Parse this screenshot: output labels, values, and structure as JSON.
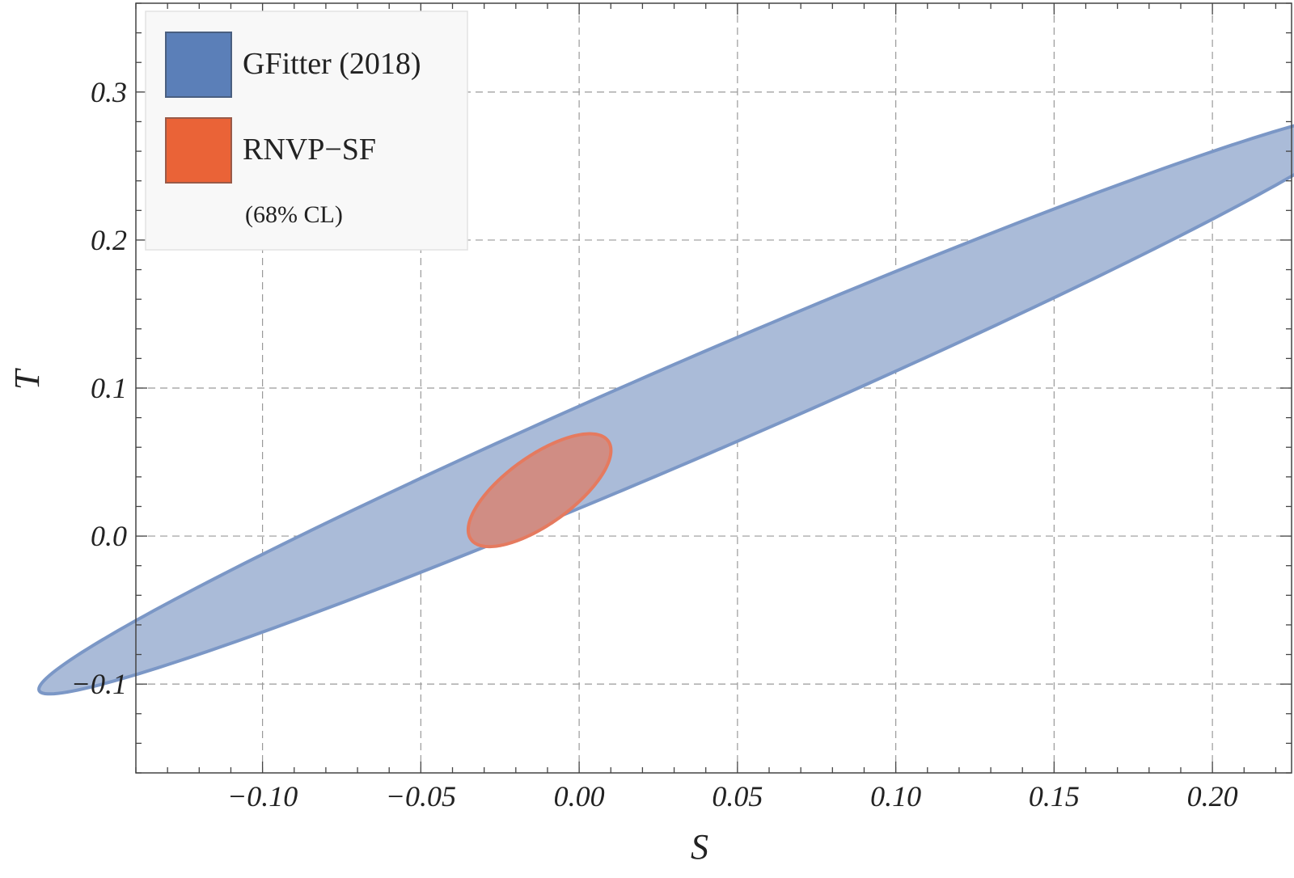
{
  "chart_data": {
    "type": "contour",
    "xlabel": "S",
    "ylabel": "T",
    "xlim": [
      -0.14,
      0.225
    ],
    "ylim": [
      -0.16,
      0.36
    ],
    "xticks": [
      -0.1,
      -0.05,
      0.0,
      0.05,
      0.1,
      0.15,
      0.2
    ],
    "xtick_labels": [
      "−0.10",
      "−0.05",
      "0.00",
      "0.05",
      "0.10",
      "0.15",
      "0.20"
    ],
    "yticks": [
      -0.1,
      0.0,
      0.1,
      0.2,
      0.3
    ],
    "ytick_labels": [
      "−0.1",
      "0.0",
      "0.1",
      "0.2",
      "0.3"
    ],
    "grid": true,
    "legend_position": "top-left",
    "legend_note": "(68% CL)",
    "series": [
      {
        "name": "GFitter (2018)",
        "shape": "ellipse",
        "center": [
          0.04,
          0.09
        ],
        "semi_major": 0.287,
        "semi_minor": 0.0258,
        "angle_deg": 43.0,
        "fill": "#aabbd8",
        "legend_swatch": "#5b7fb8",
        "stroke": "#7b97c6"
      },
      {
        "name": "RNVP−SF",
        "shape": "ellipse",
        "center": [
          -0.0125,
          0.031
        ],
        "semi_major": 0.0418,
        "semi_minor": 0.0146,
        "angle_deg": 64.0,
        "fill": "#d08d84",
        "legend_swatch": "#ea6337",
        "stroke": "#e57a5f"
      }
    ]
  }
}
